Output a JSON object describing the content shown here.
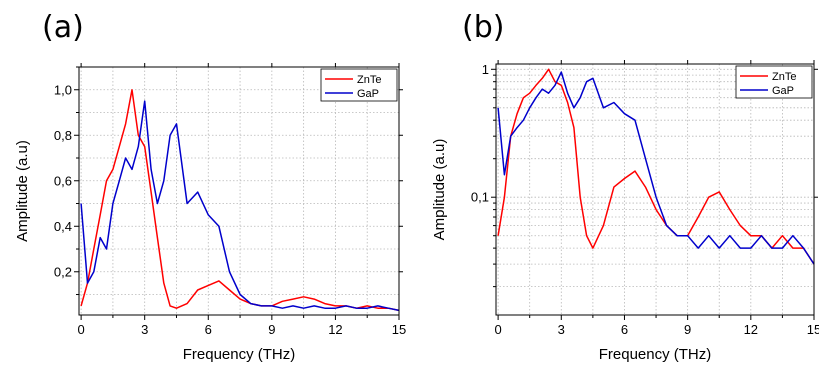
{
  "panels": [
    {
      "label": "(a)",
      "chart_data": {
        "type": "line",
        "xlabel": "Frequency (THz)",
        "ylabel": "Amplitude (a.u)",
        "xlim": [
          -0.1,
          15
        ],
        "ylim": [
          0.01,
          1.1
        ],
        "yscale": "linear",
        "grid": true,
        "legend_position": "top-right",
        "xticks": [
          0,
          3,
          6,
          9,
          12,
          15
        ],
        "xtick_labels": [
          "0",
          "3",
          "6",
          "9",
          "12",
          "15"
        ],
        "yticks": [
          0.2,
          0.4,
          0.6,
          0.8,
          1.0
        ],
        "ytick_labels": [
          "0,2",
          "0,4",
          "0,6",
          "0,8",
          "1,0"
        ],
        "series": [
          {
            "name": "ZnTe",
            "color": "#ff0000",
            "x": [
              0,
              0.3,
              0.6,
              0.9,
              1.2,
              1.5,
              1.8,
              2.1,
              2.4,
              2.7,
              3.0,
              3.3,
              3.6,
              3.9,
              4.2,
              4.5,
              5.0,
              5.5,
              6.0,
              6.5,
              7.0,
              7.5,
              8.0,
              8.5,
              9.0,
              9.5,
              10.0,
              10.5,
              11.0,
              11.5,
              12.0,
              12.5,
              13.0,
              13.5,
              14.0,
              14.5,
              15.0
            ],
            "y": [
              0.05,
              0.15,
              0.3,
              0.45,
              0.6,
              0.65,
              0.75,
              0.85,
              1.0,
              0.8,
              0.75,
              0.55,
              0.35,
              0.15,
              0.05,
              0.04,
              0.06,
              0.12,
              0.14,
              0.16,
              0.12,
              0.08,
              0.06,
              0.05,
              0.05,
              0.07,
              0.08,
              0.09,
              0.08,
              0.06,
              0.05,
              0.05,
              0.04,
              0.05,
              0.04,
              0.04,
              0.03
            ]
          },
          {
            "name": "GaP",
            "color": "#0000cc",
            "x": [
              0,
              0.3,
              0.6,
              0.9,
              1.2,
              1.5,
              1.8,
              2.1,
              2.4,
              2.7,
              3.0,
              3.3,
              3.6,
              3.9,
              4.2,
              4.5,
              5.0,
              5.5,
              6.0,
              6.5,
              7.0,
              7.5,
              8.0,
              8.5,
              9.0,
              9.5,
              10.0,
              10.5,
              11.0,
              11.5,
              12.0,
              12.5,
              13.0,
              13.5,
              14.0,
              14.5,
              15.0
            ],
            "y": [
              0.5,
              0.15,
              0.2,
              0.35,
              0.3,
              0.5,
              0.6,
              0.7,
              0.65,
              0.75,
              0.95,
              0.65,
              0.5,
              0.6,
              0.8,
              0.85,
              0.5,
              0.55,
              0.45,
              0.4,
              0.2,
              0.1,
              0.06,
              0.05,
              0.05,
              0.04,
              0.05,
              0.04,
              0.05,
              0.04,
              0.04,
              0.05,
              0.04,
              0.04,
              0.05,
              0.04,
              0.03
            ]
          }
        ]
      }
    },
    {
      "label": "(b)",
      "chart_data": {
        "type": "line",
        "xlabel": "Frequency (THz)",
        "ylabel": "Amplitude (a.u)",
        "xlim": [
          -0.1,
          15
        ],
        "ylim": [
          0.012,
          1.1
        ],
        "yscale": "log",
        "grid": true,
        "legend_position": "top-right",
        "xticks": [
          0,
          3,
          6,
          9,
          12,
          15
        ],
        "xtick_labels": [
          "0",
          "3",
          "6",
          "9",
          "12",
          "15"
        ],
        "yticks": [
          0.1,
          1
        ],
        "ytick_labels": [
          "0,1",
          "1"
        ],
        "series": [
          {
            "name": "ZnTe",
            "color": "#ff0000",
            "x": [
              0,
              0.3,
              0.6,
              0.9,
              1.2,
              1.5,
              1.8,
              2.1,
              2.4,
              2.7,
              3.0,
              3.3,
              3.6,
              3.9,
              4.2,
              4.5,
              5.0,
              5.5,
              6.0,
              6.5,
              7.0,
              7.5,
              8.0,
              8.5,
              9.0,
              9.5,
              10.0,
              10.5,
              11.0,
              11.5,
              12.0,
              12.5,
              13.0,
              13.5,
              14.0,
              14.5,
              15.0
            ],
            "y": [
              0.05,
              0.1,
              0.3,
              0.45,
              0.6,
              0.65,
              0.75,
              0.85,
              1.0,
              0.8,
              0.75,
              0.55,
              0.35,
              0.1,
              0.05,
              0.04,
              0.06,
              0.12,
              0.14,
              0.16,
              0.12,
              0.08,
              0.06,
              0.05,
              0.05,
              0.07,
              0.1,
              0.11,
              0.08,
              0.06,
              0.05,
              0.05,
              0.04,
              0.05,
              0.04,
              0.04,
              0.03
            ]
          },
          {
            "name": "GaP",
            "color": "#0000cc",
            "x": [
              0,
              0.3,
              0.6,
              0.9,
              1.2,
              1.5,
              1.8,
              2.1,
              2.4,
              2.7,
              3.0,
              3.3,
              3.6,
              3.9,
              4.2,
              4.5,
              5.0,
              5.5,
              6.0,
              6.5,
              7.0,
              7.5,
              8.0,
              8.5,
              9.0,
              9.5,
              10.0,
              10.5,
              11.0,
              11.5,
              12.0,
              12.5,
              13.0,
              13.5,
              14.0,
              14.5,
              15.0
            ],
            "y": [
              0.5,
              0.15,
              0.3,
              0.35,
              0.4,
              0.5,
              0.6,
              0.7,
              0.65,
              0.75,
              0.95,
              0.65,
              0.5,
              0.6,
              0.8,
              0.85,
              0.5,
              0.55,
              0.45,
              0.4,
              0.2,
              0.1,
              0.06,
              0.05,
              0.05,
              0.04,
              0.05,
              0.04,
              0.05,
              0.04,
              0.04,
              0.05,
              0.04,
              0.04,
              0.05,
              0.04,
              0.03
            ]
          }
        ]
      }
    }
  ]
}
